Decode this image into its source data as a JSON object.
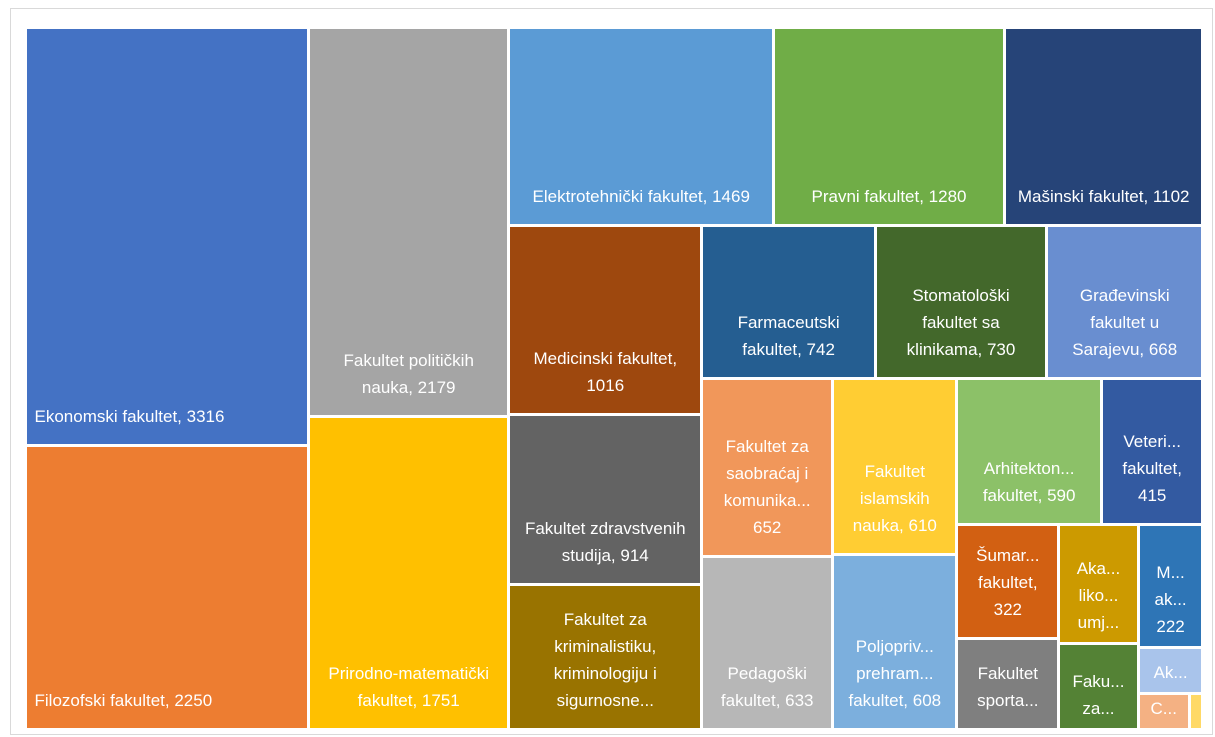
{
  "chart_data": {
    "type": "treemap",
    "labels": [
      "Ekonomski fakultet, 3316",
      "Filozofski fakultet, 2250",
      "Fakultet političkih nauka, 2179",
      "Prirodno-matematički fakultet, 1751",
      "Elektrotehnički fakultet, 1469",
      "Pravni fakultet, 1280",
      "Mašinski fakultet, 1102",
      "Medicinski fakultet, 1016",
      "Farmaceutski fakultet, 742",
      "Stomatološki fakultet sa klinikama, 730",
      "Građevinski fakultet u Sarajevu, 668",
      "Fakultet zdravstvenih studija, 914",
      "Fakultet za kriminalistiku, kriminologiju i sigurnosne...",
      "Fakultet za saobraćaj i komunika... 652",
      "Fakultet islamskih nauka, 610",
      "Arhitekton... fakultet, 590",
      "Veteri... fakultet, 415",
      "Pedagoški fakultet, 633",
      "Poljopriv... prehram... fakultet, 608",
      "Šumar... fakultet, 322",
      "Fakultet sporta...",
      "Aka... liko... umj...",
      "Faku... za...",
      "M... ak... 222",
      "Ak...",
      "C...",
      null
    ],
    "values": [
      3316,
      2250,
      2179,
      1751,
      1469,
      1280,
      1102,
      1016,
      742,
      730,
      668,
      914,
      785,
      652,
      610,
      590,
      415,
      633,
      608,
      322,
      261,
      264,
      191,
      222,
      83,
      52,
      14
    ],
    "colors": [
      "#4472c4",
      "#ed7d31",
      "#a5a5a5",
      "#ffc000",
      "#5b9bd5",
      "#70ad47",
      "#264478",
      "#9e480e",
      "#255e91",
      "#43682b",
      "#698ed0",
      "#636363",
      "#997300",
      "#f1975a",
      "#ffcd33",
      "#8cc168",
      "#335aa1",
      "#b7b7b7",
      "#7cafdd",
      "#d26012",
      "#7f7f7f",
      "#cc9a00",
      "#548235",
      "#2e75b6",
      "#a9c4eb",
      "#f4b183",
      "#ffd966"
    ]
  }
}
